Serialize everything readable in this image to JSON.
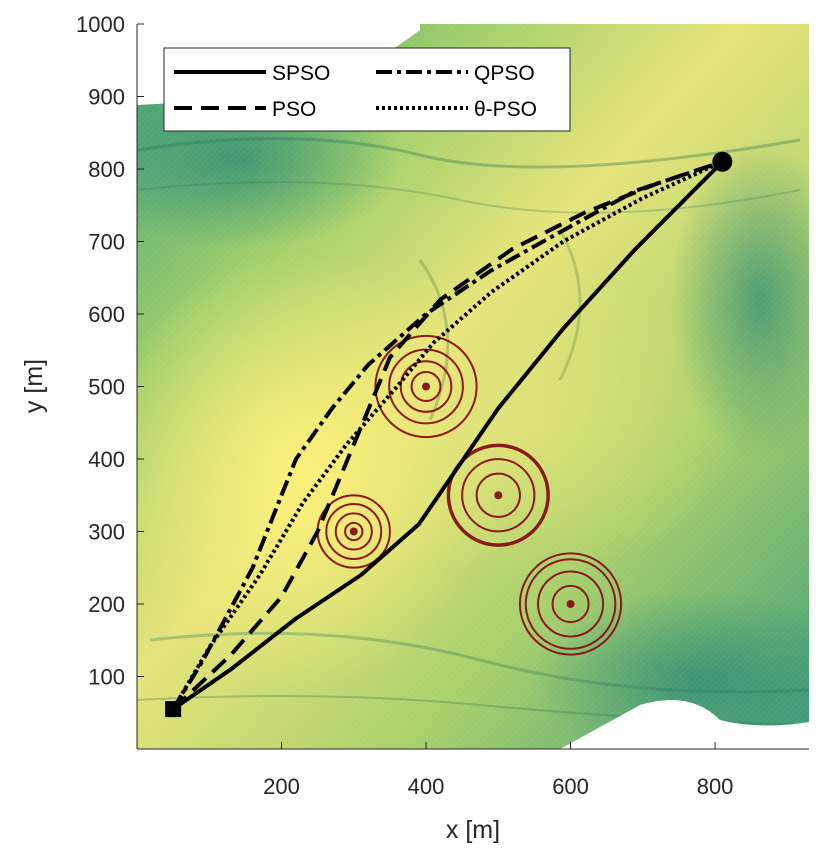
{
  "chart_data": {
    "type": "line",
    "title": "",
    "xlabel": "x [m]",
    "ylabel": "y [m]",
    "xlim": [
      0,
      930
    ],
    "ylim": [
      0,
      1000
    ],
    "xticks": [
      200,
      400,
      600,
      800
    ],
    "yticks": [
      100,
      200,
      300,
      400,
      500,
      600,
      700,
      800,
      900,
      1000
    ],
    "legend_position": "top-left",
    "start_point": [
      50,
      55
    ],
    "goal_point": [
      810,
      810
    ],
    "obstacles": [
      {
        "center": [
          300,
          300
        ],
        "radii": [
          12,
          25,
          38,
          50
        ]
      },
      {
        "center": [
          400,
          500
        ],
        "radii": [
          20,
          35,
          51,
          70
        ]
      },
      {
        "center": [
          500,
          350
        ],
        "radii": [
          30,
          50,
          68,
          70
        ]
      },
      {
        "center": [
          600,
          200
        ],
        "radii": [
          25,
          45,
          62,
          70
        ]
      }
    ],
    "series": [
      {
        "name": "SPSO",
        "style": "solid",
        "x": [
          50,
          130,
          220,
          310,
          390,
          500,
          590,
          690,
          810
        ],
        "y": [
          55,
          110,
          180,
          240,
          310,
          470,
          580,
          690,
          810
        ]
      },
      {
        "name": "PSO",
        "style": "dashed",
        "x": [
          50,
          130,
          200,
          250,
          300,
          350,
          420,
          520,
          620,
          720,
          810
        ],
        "y": [
          55,
          130,
          210,
          300,
          420,
          540,
          620,
          690,
          740,
          780,
          810
        ]
      },
      {
        "name": "QPSO",
        "style": "dashdot",
        "x": [
          50,
          90,
          160,
          220,
          270,
          320,
          400,
          490,
          580,
          690,
          810
        ],
        "y": [
          55,
          120,
          250,
          400,
          470,
          530,
          600,
          660,
          710,
          770,
          810
        ]
      },
      {
        "name": "θ-PSO",
        "style": "dotted",
        "x": [
          50,
          100,
          170,
          230,
          290,
          360,
          410,
          490,
          590,
          700,
          810
        ],
        "y": [
          55,
          140,
          240,
          340,
          420,
          500,
          560,
          630,
          700,
          760,
          810
        ]
      }
    ]
  },
  "colors": {
    "obstacle": "#8b1a1a",
    "path": "#000000",
    "terrain_low": "#2e8b74",
    "terrain_high": "#f2ea7a"
  }
}
